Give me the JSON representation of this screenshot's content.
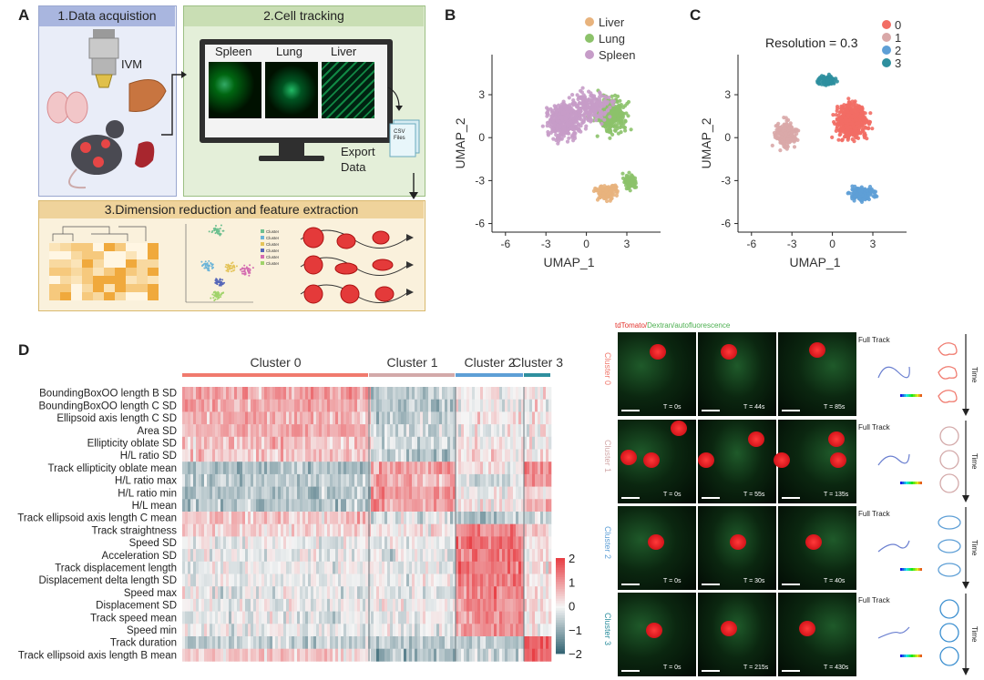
{
  "panelA": {
    "letter": "A",
    "step1": "1.Data acquistion",
    "ivm": "IVM",
    "step2": "2.Cell tracking",
    "screens": [
      "Spleen",
      "Lung",
      "Liver"
    ],
    "csv": "CSV\nFiles",
    "export": "Export\nData",
    "step3": "3.Dimension reduction and feature extraction",
    "mini_umap_legend": [
      "Cluster 1",
      "Cluster 2",
      "Cluster 3",
      "Cluster 4",
      "Cluster 5",
      "Cluster 6"
    ]
  },
  "panelB": {
    "letter": "B",
    "legend": [
      {
        "name": "Liver",
        "color": "#e8b37d"
      },
      {
        "name": "Lung",
        "color": "#8cc26a"
      },
      {
        "name": "Spleen",
        "color": "#c69cc8"
      }
    ],
    "xlabel": "UMAP_1",
    "ylabel": "UMAP_2",
    "xticks": [
      "-6",
      "-3",
      "0",
      "3"
    ],
    "yticks": [
      "3",
      "0",
      "-3",
      "-6"
    ]
  },
  "panelC": {
    "letter": "C",
    "annotation": "Resolution = 0.3",
    "legend": [
      {
        "name": "0",
        "color": "#f26d64"
      },
      {
        "name": "1",
        "color": "#d9a8a8"
      },
      {
        "name": "2",
        "color": "#5e9fd6"
      },
      {
        "name": "3",
        "color": "#2e8f9e"
      }
    ],
    "xlabel": "UMAP_1",
    "ylabel": "UMAP_2",
    "xticks": [
      "-6",
      "-3",
      "0",
      "3"
    ],
    "yticks": [
      "3",
      "0",
      "-3",
      "-6"
    ]
  },
  "panelD": {
    "letter": "D",
    "clusters": [
      {
        "name": "Cluster 0",
        "color": "#f07a6e"
      },
      {
        "name": "Cluster 1",
        "color": "#d3a9a9"
      },
      {
        "name": "Cluster 2",
        "color": "#5e9fd6"
      },
      {
        "name": "Cluster 3",
        "color": "#2e8f9e"
      }
    ],
    "rows": [
      "BoundingBoxOO length B SD",
      "BoundingBoxOO length C SD",
      "Ellipsoid axis length C SD",
      "Area SD",
      "Ellipticity oblate SD",
      "H/L ratio SD",
      "Track ellipticity oblate mean",
      "H/L ratio max",
      "H/L ratio min",
      "H/L mean",
      "Track ellipsoid axis length C mean",
      "Track straightness",
      "Speed SD",
      "Acceleration SD",
      "Track displacement length",
      "Displacement delta length SD",
      "Speed max",
      "Displacement SD",
      "Track speed mean",
      "Speed min",
      "Track duration",
      "Track ellipsoid axis length B mean"
    ],
    "colorbar_ticks": [
      "2",
      "1",
      "0",
      "−1",
      "−2"
    ],
    "micro_header_red": "tdTomato/",
    "micro_header_green": "Dextran/autofluorescence",
    "micro_rows": [
      {
        "label": "Cluster 0",
        "color": "#f07a6e",
        "times": [
          "T = 0s",
          "T = 44s",
          "T = 85s"
        ]
      },
      {
        "label": "Cluster 1",
        "color": "#d3a9a9",
        "times": [
          "T = 0s",
          "T = 55s",
          "T = 135s"
        ]
      },
      {
        "label": "Cluster 2",
        "color": "#5e9fd6",
        "times": [
          "T = 0s",
          "T = 30s",
          "T = 40s"
        ]
      },
      {
        "label": "Cluster 3",
        "color": "#2e8f9e",
        "times": [
          "T = 0s",
          "T = 215s",
          "T = 430s"
        ]
      }
    ],
    "full_track": "Full Track",
    "time_label": "Time"
  }
}
